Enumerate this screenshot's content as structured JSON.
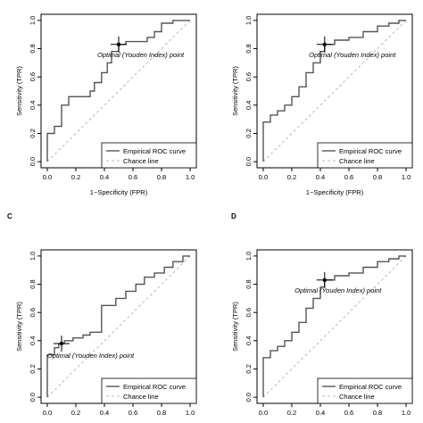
{
  "chart_data": [
    {
      "type": "line",
      "panel_label": "",
      "xlabel": "1−Specificity (FPR)",
      "ylabel": "Sensitivity (TPR)",
      "xlim": [
        0,
        1
      ],
      "ylim": [
        0,
        1
      ],
      "ticks": [
        "0.0",
        "0.2",
        "0.4",
        "0.6",
        "0.8",
        "1.0"
      ],
      "legend": {
        "position": "bottom-right",
        "roc_label": "Empirical ROC curve",
        "chance_label": "Chance line"
      },
      "annotation": "Optimal (Youden Index) point",
      "optimal_point": {
        "x": 0.5,
        "y": 0.83
      },
      "roc": [
        [
          0,
          0
        ],
        [
          0,
          0.2
        ],
        [
          0.05,
          0.2
        ],
        [
          0.05,
          0.25
        ],
        [
          0.1,
          0.25
        ],
        [
          0.1,
          0.4
        ],
        [
          0.15,
          0.4
        ],
        [
          0.15,
          0.46
        ],
        [
          0.3,
          0.46
        ],
        [
          0.3,
          0.5
        ],
        [
          0.33,
          0.5
        ],
        [
          0.33,
          0.56
        ],
        [
          0.38,
          0.56
        ],
        [
          0.38,
          0.63
        ],
        [
          0.42,
          0.63
        ],
        [
          0.42,
          0.7
        ],
        [
          0.45,
          0.7
        ],
        [
          0.45,
          0.78
        ],
        [
          0.5,
          0.78
        ],
        [
          0.5,
          0.83
        ],
        [
          0.55,
          0.83
        ],
        [
          0.55,
          0.85
        ],
        [
          0.7,
          0.85
        ],
        [
          0.7,
          0.88
        ],
        [
          0.75,
          0.88
        ],
        [
          0.75,
          0.92
        ],
        [
          0.8,
          0.92
        ],
        [
          0.8,
          0.98
        ],
        [
          0.88,
          0.98
        ],
        [
          0.88,
          1
        ],
        [
          1,
          1
        ]
      ]
    },
    {
      "type": "line",
      "panel_label": "",
      "xlabel": "1−Specificity (FPR)",
      "ylabel": "Sensitivity (TPR)",
      "xlim": [
        0,
        1
      ],
      "ylim": [
        0,
        1
      ],
      "ticks": [
        "0.0",
        "0.2",
        "0.4",
        "0.6",
        "0.8",
        "1.0"
      ],
      "legend": {
        "position": "bottom-right",
        "roc_label": "Empirical ROC curve",
        "chance_label": "Chance line"
      },
      "annotation": "Optimal (Youden Index) point",
      "optimal_point": {
        "x": 0.43,
        "y": 0.83
      },
      "roc": [
        [
          0,
          0
        ],
        [
          0,
          0.28
        ],
        [
          0.05,
          0.28
        ],
        [
          0.05,
          0.33
        ],
        [
          0.1,
          0.33
        ],
        [
          0.1,
          0.36
        ],
        [
          0.15,
          0.36
        ],
        [
          0.15,
          0.4
        ],
        [
          0.2,
          0.4
        ],
        [
          0.2,
          0.46
        ],
        [
          0.25,
          0.46
        ],
        [
          0.25,
          0.53
        ],
        [
          0.3,
          0.53
        ],
        [
          0.3,
          0.63
        ],
        [
          0.35,
          0.63
        ],
        [
          0.35,
          0.7
        ],
        [
          0.4,
          0.7
        ],
        [
          0.4,
          0.78
        ],
        [
          0.43,
          0.78
        ],
        [
          0.43,
          0.83
        ],
        [
          0.5,
          0.83
        ],
        [
          0.5,
          0.86
        ],
        [
          0.6,
          0.86
        ],
        [
          0.6,
          0.88
        ],
        [
          0.7,
          0.88
        ],
        [
          0.7,
          0.92
        ],
        [
          0.8,
          0.92
        ],
        [
          0.8,
          0.96
        ],
        [
          0.88,
          0.96
        ],
        [
          0.88,
          0.98
        ],
        [
          0.95,
          0.98
        ],
        [
          0.95,
          1
        ],
        [
          1,
          1
        ]
      ]
    },
    {
      "type": "line",
      "panel_label": "C",
      "xlabel": "",
      "ylabel": "Sensitivity (TPR)",
      "xlim": [
        0,
        1
      ],
      "ylim": [
        0,
        1
      ],
      "ticks": [
        "0.0",
        "0.2",
        "0.4",
        "0.6",
        "0.8",
        "1.0"
      ],
      "legend": {
        "position": "bottom-right",
        "roc_label": "Empirical ROC curve",
        "chance_label": "Chance line"
      },
      "annotation": "Optimal (Youden Index) point",
      "optimal_point": {
        "x": 0.1,
        "y": 0.38
      },
      "roc": [
        [
          0,
          0
        ],
        [
          0,
          0.3
        ],
        [
          0.05,
          0.3
        ],
        [
          0.05,
          0.35
        ],
        [
          0.08,
          0.35
        ],
        [
          0.08,
          0.38
        ],
        [
          0.12,
          0.38
        ],
        [
          0.12,
          0.4
        ],
        [
          0.18,
          0.4
        ],
        [
          0.18,
          0.42
        ],
        [
          0.25,
          0.42
        ],
        [
          0.25,
          0.44
        ],
        [
          0.3,
          0.44
        ],
        [
          0.3,
          0.46
        ],
        [
          0.38,
          0.46
        ],
        [
          0.38,
          0.65
        ],
        [
          0.48,
          0.65
        ],
        [
          0.48,
          0.7
        ],
        [
          0.55,
          0.7
        ],
        [
          0.55,
          0.75
        ],
        [
          0.62,
          0.75
        ],
        [
          0.62,
          0.8
        ],
        [
          0.68,
          0.8
        ],
        [
          0.68,
          0.85
        ],
        [
          0.75,
          0.85
        ],
        [
          0.75,
          0.88
        ],
        [
          0.82,
          0.88
        ],
        [
          0.82,
          0.92
        ],
        [
          0.88,
          0.92
        ],
        [
          0.88,
          0.96
        ],
        [
          0.95,
          0.96
        ],
        [
          0.95,
          1
        ],
        [
          1,
          1
        ]
      ]
    },
    {
      "type": "line",
      "panel_label": "D",
      "xlabel": "",
      "ylabel": "Sensitivity (TPR)",
      "xlim": [
        0,
        1
      ],
      "ylim": [
        0,
        1
      ],
      "ticks": [
        "0.0",
        "0.2",
        "0.4",
        "0.6",
        "0.8",
        "1.0"
      ],
      "legend": {
        "position": "bottom-right",
        "roc_label": "Empirical ROC curve",
        "chance_label": "Chance line"
      },
      "annotation": "Optimal (Youden Index) point",
      "optimal_point": {
        "x": 0.43,
        "y": 0.83
      },
      "roc": [
        [
          0,
          0
        ],
        [
          0,
          0.28
        ],
        [
          0.05,
          0.28
        ],
        [
          0.05,
          0.33
        ],
        [
          0.1,
          0.33
        ],
        [
          0.1,
          0.36
        ],
        [
          0.15,
          0.36
        ],
        [
          0.15,
          0.4
        ],
        [
          0.2,
          0.4
        ],
        [
          0.2,
          0.46
        ],
        [
          0.25,
          0.46
        ],
        [
          0.25,
          0.53
        ],
        [
          0.3,
          0.53
        ],
        [
          0.3,
          0.63
        ],
        [
          0.35,
          0.63
        ],
        [
          0.35,
          0.7
        ],
        [
          0.4,
          0.7
        ],
        [
          0.4,
          0.78
        ],
        [
          0.43,
          0.78
        ],
        [
          0.43,
          0.83
        ],
        [
          0.5,
          0.83
        ],
        [
          0.5,
          0.86
        ],
        [
          0.6,
          0.86
        ],
        [
          0.6,
          0.88
        ],
        [
          0.7,
          0.88
        ],
        [
          0.7,
          0.92
        ],
        [
          0.8,
          0.92
        ],
        [
          0.8,
          0.96
        ],
        [
          0.88,
          0.96
        ],
        [
          0.88,
          0.98
        ],
        [
          0.95,
          0.98
        ],
        [
          0.95,
          1
        ],
        [
          1,
          1
        ]
      ]
    }
  ]
}
